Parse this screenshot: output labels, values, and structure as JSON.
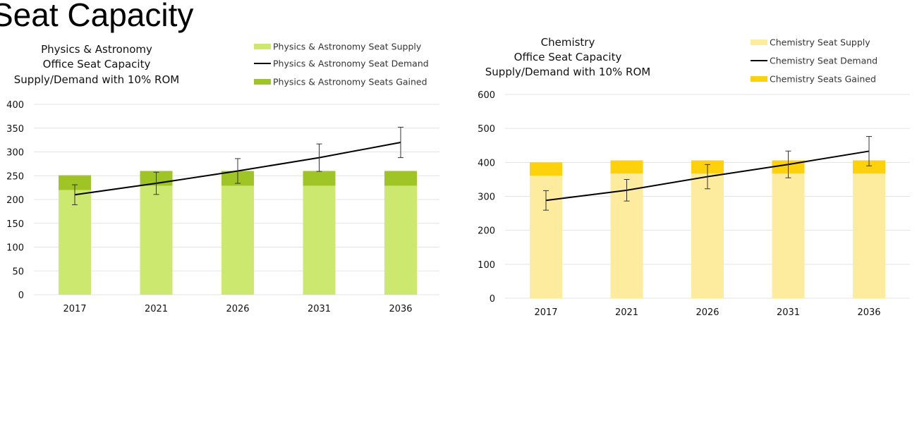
{
  "slide": {
    "title": "Seat Capacity"
  },
  "chart_data": [
    {
      "type": "bar",
      "title": [
        "Physics & Astronomy",
        "Office Seat Capacity",
        "Supply/Demand with 10% ROM"
      ],
      "categories": [
        "2017",
        "2021",
        "2026",
        "2031",
        "2036"
      ],
      "series": [
        {
          "name": "Physics & Astronomy Seat Supply",
          "kind": "bar-stack-base",
          "color": "#cde86e",
          "values": [
            220,
            229,
            229,
            229,
            229
          ]
        },
        {
          "name": "Physics & Astronomy Seat Demand",
          "kind": "line",
          "color": "#000000",
          "values": [
            210,
            234,
            260,
            288,
            320
          ],
          "error_pct": 0.1
        },
        {
          "name": "Physics & Astronomy Seats Gained",
          "kind": "bar-stack-top",
          "color": "#9ec425",
          "values": [
            31,
            31,
            31,
            31,
            31
          ]
        }
      ],
      "ylim": [
        0,
        400
      ],
      "yticks": [
        0,
        50,
        100,
        150,
        200,
        250,
        300,
        350,
        400
      ],
      "xlabel": "",
      "ylabel": "",
      "legend": "top-right"
    },
    {
      "type": "bar",
      "title": [
        "Chemistry",
        "Office Seat Capacity",
        "Supply/Demand with 10% ROM"
      ],
      "categories": [
        "2017",
        "2021",
        "2026",
        "2031",
        "2036"
      ],
      "series": [
        {
          "name": "Chemistry Seat Supply",
          "kind": "bar-stack-base",
          "color": "#fdeb9e",
          "values": [
            361,
            367,
            367,
            367,
            367
          ]
        },
        {
          "name": "Chemistry Seat Demand",
          "kind": "line",
          "color": "#000000",
          "values": [
            288,
            318,
            358,
            394,
            433
          ],
          "error_pct": 0.1
        },
        {
          "name": "Chemistry Seats Gained",
          "kind": "bar-stack-top",
          "color": "#fdd10c",
          "values": [
            39,
            39,
            39,
            39,
            39
          ]
        }
      ],
      "ylim": [
        0,
        600
      ],
      "yticks": [
        0,
        100,
        200,
        300,
        400,
        500,
        600
      ],
      "xlabel": "",
      "ylabel": "",
      "legend": "top-right"
    }
  ]
}
